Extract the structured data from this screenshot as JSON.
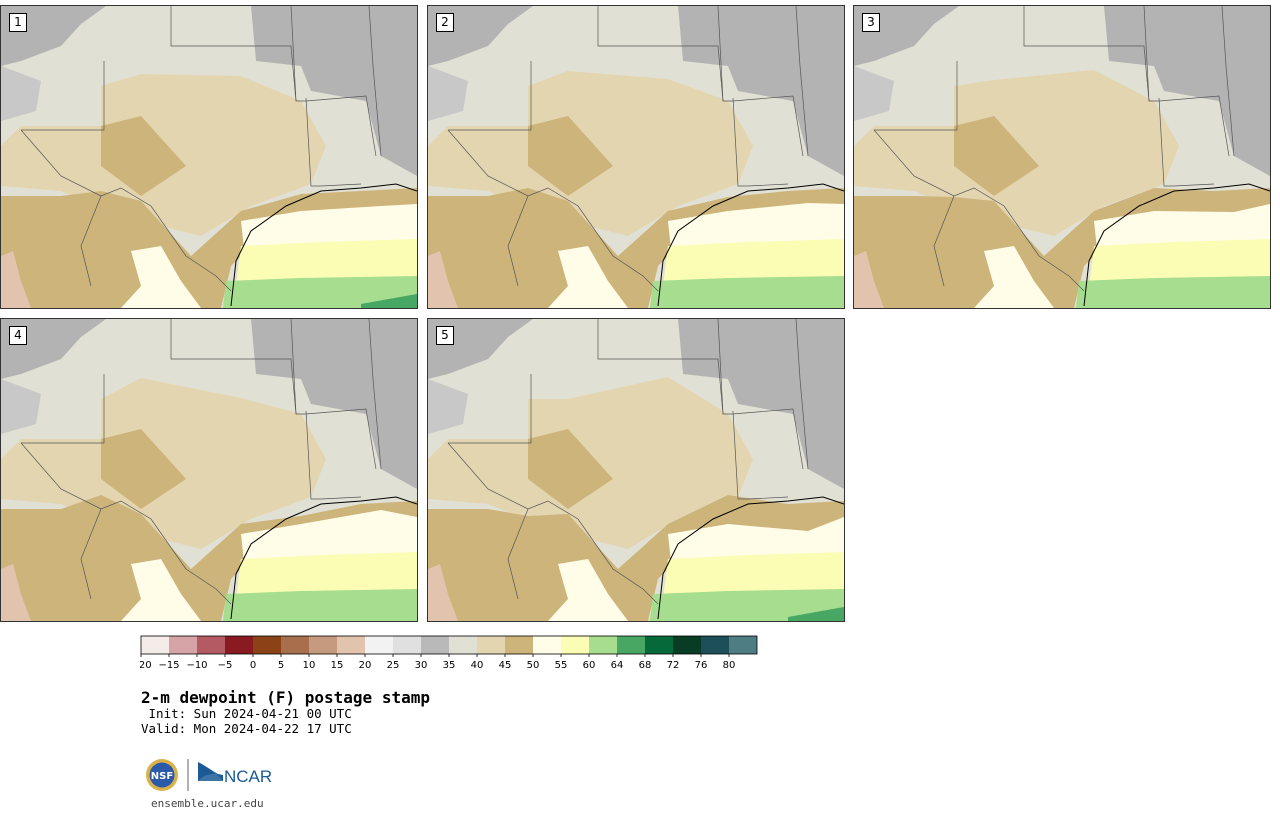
{
  "panels": [
    {
      "label": "1"
    },
    {
      "label": "2"
    },
    {
      "label": "3"
    },
    {
      "label": "4"
    },
    {
      "label": "5"
    }
  ],
  "colorbar": {
    "colors": [
      "#f3ece8",
      "#d6a3a6",
      "#b35a63",
      "#8a1a22",
      "#8a4216",
      "#a86f4c",
      "#c69a7e",
      "#e2c3ad",
      "#f2f2f2",
      "#e0e0e0",
      "#b9b9b9",
      "#e1e0d4",
      "#e3d5b0",
      "#cdb47b",
      "#fffde8",
      "#fbfdb4",
      "#a6dd8e",
      "#47a763",
      "#05693a",
      "#083c24",
      "#1d4f59",
      "#4f7d84"
    ],
    "ticks": [
      "−20",
      "−15",
      "−10",
      "−5",
      "0",
      "5",
      "10",
      "15",
      "20",
      "25",
      "30",
      "35",
      "40",
      "45",
      "50",
      "55",
      "60",
      "64",
      "68",
      "72",
      "76",
      "80"
    ]
  },
  "map_colors": {
    "dry_gray": "#b3b3b3",
    "light_gray": "#e1e0d4",
    "tan_40": "#e3d5b0",
    "tan_45": "#cdb47b",
    "cream_50": "#fffde8",
    "yellow_55": "#fbfdb4",
    "green_60": "#a6dd8e",
    "green_64": "#47a763",
    "pink_low": "#e2c3ad"
  },
  "title": "2-m dewpoint (F) postage stamp",
  "init": " Init: Sun 2024-04-21 00 UTC",
  "valid": "Valid: Mon 2024-04-22 17 UTC",
  "logos": {
    "nsf": "NSF",
    "ncar": "NCAR"
  },
  "url": "ensemble.ucar.edu"
}
